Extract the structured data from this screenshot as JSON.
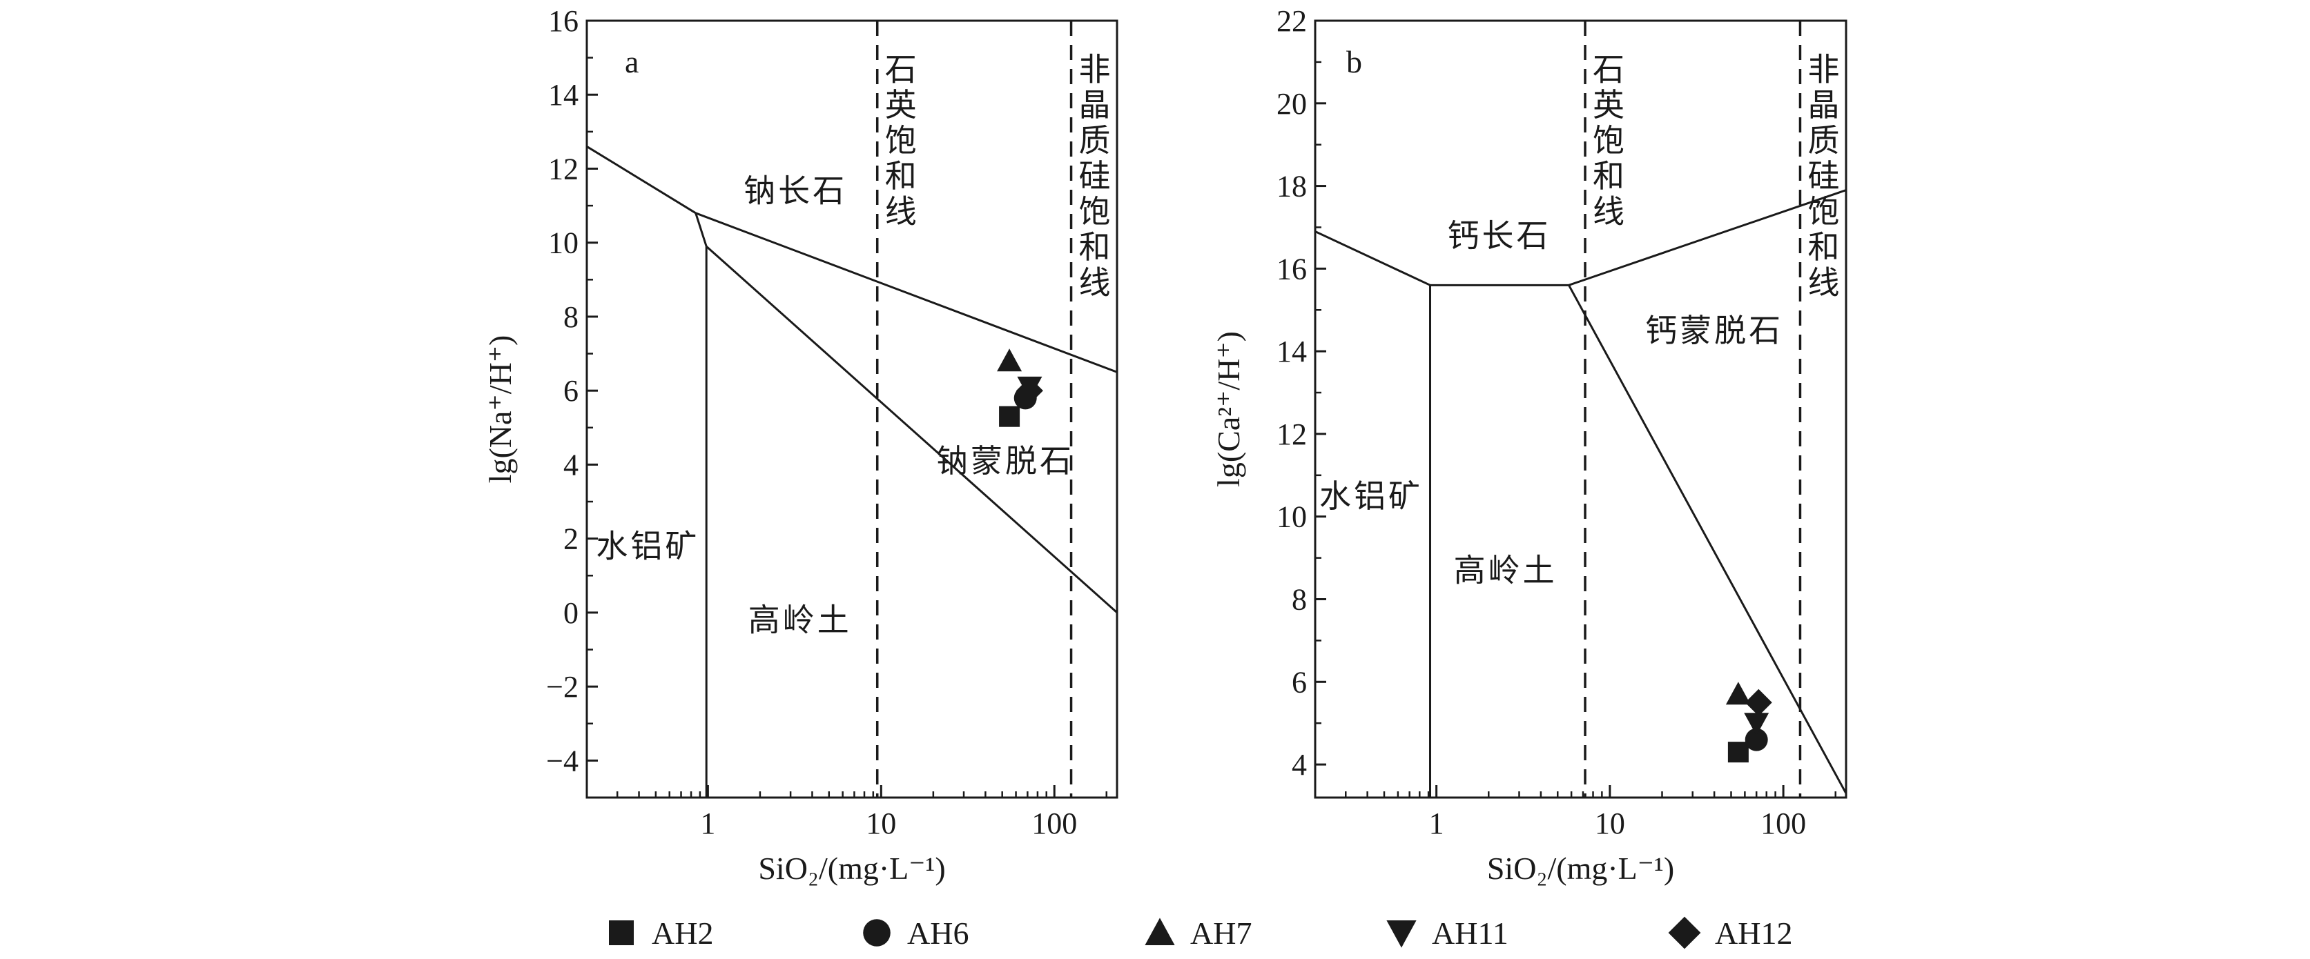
{
  "chart_data": [
    {
      "type": "scatter",
      "panel_label": "a",
      "xlabel": "SiO₂/(mg·L⁻¹)",
      "ylabel": "lg(Na⁺/H⁺)",
      "x_scale": "log",
      "xlim": [
        0.2,
        230
      ],
      "ylim": [
        -5,
        16
      ],
      "x_ticks": [
        "1",
        "10",
        "100"
      ],
      "y_ticks": [
        "−4",
        "−2",
        "0",
        "2",
        "4",
        "6",
        "8",
        "10",
        "12",
        "14",
        "16"
      ],
      "boundaries": [
        {
          "x": [
            0.2,
            0.85
          ],
          "y": [
            12.6,
            10.8
          ]
        },
        {
          "x": [
            0.85,
            230
          ],
          "y": [
            10.8,
            6.5
          ]
        },
        {
          "x": [
            0.85,
            0.98
          ],
          "y": [
            10.8,
            9.9
          ]
        },
        {
          "x": [
            0.98,
            230
          ],
          "y": [
            9.9,
            0.0
          ]
        },
        {
          "x": [
            0.98,
            0.98
          ],
          "y": [
            9.9,
            -5
          ]
        }
      ],
      "saturation_lines": [
        {
          "x": 9.5,
          "label": "石英饱和线"
        },
        {
          "x": 125,
          "label": "非晶质硅饱和线"
        }
      ],
      "fields": [
        {
          "label": "钠长石",
          "x": 3.2,
          "y": 11.4
        },
        {
          "label": "钠蒙脱石",
          "x": 52,
          "y": 4.1
        },
        {
          "label": "水铝矿",
          "x": 0.45,
          "y": 1.8
        },
        {
          "label": "高岭土",
          "x": 3.4,
          "y": -0.2
        }
      ],
      "series": [
        {
          "name": "AH2",
          "marker": "square",
          "x": 55,
          "y": 5.3
        },
        {
          "name": "AH6",
          "marker": "circle",
          "x": 68,
          "y": 5.8
        },
        {
          "name": "AH7",
          "marker": "triangle-up",
          "x": 55,
          "y": 6.8
        },
        {
          "name": "AH11",
          "marker": "triangle-down",
          "x": 72,
          "y": 6.1
        },
        {
          "name": "AH12",
          "marker": "diamond",
          "x": 72,
          "y": 6.0
        }
      ]
    },
    {
      "type": "scatter",
      "panel_label": "b",
      "xlabel": "SiO₂/(mg·L⁻¹)",
      "ylabel": "lg(Ca²⁺/H⁺)",
      "x_scale": "log",
      "xlim": [
        0.2,
        230
      ],
      "ylim": [
        3.2,
        22
      ],
      "x_ticks": [
        "1",
        "10",
        "100"
      ],
      "y_ticks": [
        "4",
        "6",
        "8",
        "10",
        "12",
        "14",
        "16",
        "18",
        "20",
        "22"
      ],
      "boundaries": [
        {
          "x": [
            0.2,
            0.92
          ],
          "y": [
            16.9,
            15.6
          ]
        },
        {
          "x": [
            0.92,
            5.8
          ],
          "y": [
            15.6,
            15.6
          ]
        },
        {
          "x": [
            5.8,
            230
          ],
          "y": [
            15.6,
            17.9
          ]
        },
        {
          "x": [
            5.8,
            230
          ],
          "y": [
            15.6,
            3.3
          ]
        },
        {
          "x": [
            0.92,
            0.92
          ],
          "y": [
            15.6,
            3.2
          ]
        }
      ],
      "saturation_lines": [
        {
          "x": 7.2,
          "label": "石英饱和线"
        },
        {
          "x": 125,
          "label": "非晶质硅饱和线"
        }
      ],
      "fields": [
        {
          "label": "钙长石",
          "x": 2.3,
          "y": 16.8
        },
        {
          "label": "钙蒙脱石",
          "x": 40,
          "y": 14.5
        },
        {
          "label": "水铝矿",
          "x": 0.42,
          "y": 10.5
        },
        {
          "label": "高岭土",
          "x": 2.5,
          "y": 8.7
        }
      ],
      "series": [
        {
          "name": "AH2",
          "marker": "square",
          "x": 55,
          "y": 4.3
        },
        {
          "name": "AH6",
          "marker": "circle",
          "x": 70,
          "y": 4.6
        },
        {
          "name": "AH7",
          "marker": "triangle-up",
          "x": 55,
          "y": 5.7
        },
        {
          "name": "AH11",
          "marker": "triangle-down",
          "x": 70,
          "y": 5.0
        },
        {
          "name": "AH12",
          "marker": "diamond",
          "x": 72,
          "y": 5.5
        }
      ]
    }
  ],
  "legend": [
    {
      "name": "AH2",
      "marker": "square"
    },
    {
      "name": "AH6",
      "marker": "circle"
    },
    {
      "name": "AH7",
      "marker": "triangle-up"
    },
    {
      "name": "AH11",
      "marker": "triangle-down"
    },
    {
      "name": "AH12",
      "marker": "diamond"
    }
  ],
  "colors": {
    "ink": "#1a1a1a",
    "background": "#ffffff"
  }
}
